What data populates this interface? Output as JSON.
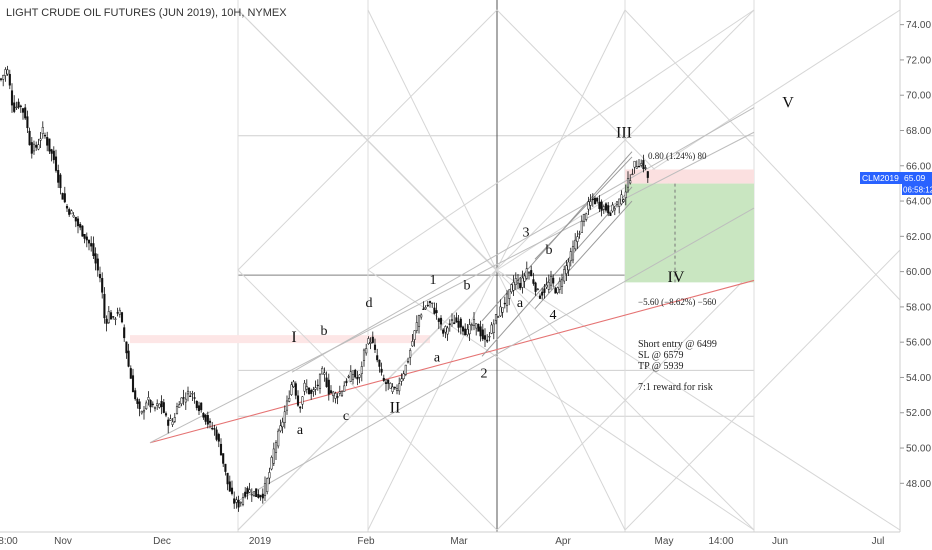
{
  "header": {
    "title": "LIGHT CRUDE OIL FUTURES (JUN 2019), 10H, NYMEX"
  },
  "price_badge": {
    "symbol": "CLM2019",
    "price": "65.09",
    "countdown": "06:58:12"
  },
  "notes": {
    "entry": "Short entry @ 6499",
    "sl": "SL @ 6579",
    "tp": "TP @ 5939",
    "ratio": "7:1 reward for risk",
    "risk_label": "0.80 (1.24%) 80",
    "reward_label": "−5.60 (−8.62%) −560"
  },
  "colors": {
    "candle": "#111111",
    "support_line": "#e57373",
    "channel": "#9a9a9a",
    "fan": "#d6d6d6",
    "target_zone": "#c9e6c1",
    "risk_zone": "#fbe0e0",
    "badge": "#2962ff",
    "vline": "#555555"
  },
  "chart_data": {
    "type": "candlestick",
    "title": "LIGHT CRUDE OIL FUTURES (JUN 2019), 10H, NYMEX",
    "ylim": [
      46.6,
      75.0
    ],
    "y_ticks": [
      "74.00",
      "72.00",
      "70.00",
      "68.00",
      "66.00",
      "64.00",
      "62.00",
      "60.00",
      "58.00",
      "56.00",
      "54.00",
      "52.00",
      "50.00",
      "48.00"
    ],
    "x_ticks": [
      "8:00",
      "Nov",
      "Dec",
      "2019",
      "Feb",
      "Mar",
      "Apr",
      "May",
      "14:00",
      "Jun",
      "Jul"
    ],
    "series": [
      {
        "values": [
          [
            0,
            70.9
          ],
          [
            6,
            71.6
          ],
          [
            12,
            69.2
          ],
          [
            18,
            69.5
          ],
          [
            24,
            68.9
          ],
          [
            30,
            66.9
          ],
          [
            36,
            67.1
          ],
          [
            42,
            68.0
          ],
          [
            48,
            67.0
          ],
          [
            54,
            66.2
          ],
          [
            60,
            64.5
          ],
          [
            66,
            63.6
          ],
          [
            72,
            63.2
          ],
          [
            78,
            62.5
          ],
          [
            84,
            62.0
          ],
          [
            90,
            61.4
          ],
          [
            96,
            60.2
          ],
          [
            100,
            59.5
          ],
          [
            104,
            57.0
          ],
          [
            108,
            57.7
          ],
          [
            112,
            57.2
          ],
          [
            118,
            57.9
          ],
          [
            124,
            56.0
          ],
          [
            128,
            54.5
          ],
          [
            134,
            52.8
          ],
          [
            140,
            51.8
          ],
          [
            146,
            52.8
          ],
          [
            152,
            52.2
          ],
          [
            160,
            52.5
          ],
          [
            166,
            51.5
          ],
          [
            172,
            51.5
          ],
          [
            178,
            52.7
          ],
          [
            184,
            52.9
          ],
          [
            190,
            53.2
          ],
          [
            196,
            52.5
          ],
          [
            202,
            52.0
          ],
          [
            208,
            51.3
          ],
          [
            214,
            51.0
          ],
          [
            220,
            49.8
          ],
          [
            226,
            48.1
          ],
          [
            232,
            47.0
          ],
          [
            238,
            46.8
          ],
          [
            244,
            47.5
          ],
          [
            250,
            47.6
          ],
          [
            256,
            47.3
          ],
          [
            262,
            47.4
          ],
          [
            268,
            48.5
          ],
          [
            274,
            50.2
          ],
          [
            280,
            51.2
          ],
          [
            286,
            52.5
          ],
          [
            292,
            54.0
          ],
          [
            298,
            52.2
          ],
          [
            304,
            53.6
          ],
          [
            310,
            53.0
          ],
          [
            316,
            53.5
          ],
          [
            322,
            54.4
          ],
          [
            328,
            53.2
          ],
          [
            334,
            53.0
          ],
          [
            340,
            53.2
          ],
          [
            346,
            53.9
          ],
          [
            352,
            54.2
          ],
          [
            358,
            53.8
          ],
          [
            364,
            55.8
          ],
          [
            370,
            56.2
          ],
          [
            376,
            55.0
          ],
          [
            382,
            53.8
          ],
          [
            388,
            53.5
          ],
          [
            394,
            53.2
          ],
          [
            400,
            54.0
          ],
          [
            406,
            54.8
          ],
          [
            412,
            56.2
          ],
          [
            418,
            57.5
          ],
          [
            424,
            58.0
          ],
          [
            430,
            58.2
          ],
          [
            436,
            57.5
          ],
          [
            442,
            56.5
          ],
          [
            448,
            57.0
          ],
          [
            454,
            57.2
          ],
          [
            460,
            57.0
          ],
          [
            466,
            56.5
          ],
          [
            472,
            57.1
          ],
          [
            478,
            56.7
          ],
          [
            484,
            56.0
          ],
          [
            490,
            56.7
          ],
          [
            496,
            57.5
          ],
          [
            502,
            58.1
          ],
          [
            508,
            58.7
          ],
          [
            514,
            59.6
          ],
          [
            520,
            59.2
          ],
          [
            526,
            60.2
          ],
          [
            532,
            59.5
          ],
          [
            538,
            58.6
          ],
          [
            544,
            59.0
          ],
          [
            550,
            59.5
          ],
          [
            556,
            58.8
          ],
          [
            562,
            59.9
          ],
          [
            568,
            60.6
          ],
          [
            574,
            61.6
          ],
          [
            580,
            62.6
          ],
          [
            586,
            63.6
          ],
          [
            592,
            64.1
          ],
          [
            598,
            63.8
          ],
          [
            604,
            63.6
          ],
          [
            610,
            63.4
          ],
          [
            616,
            63.9
          ],
          [
            622,
            64.2
          ],
          [
            628,
            65.2
          ],
          [
            633,
            66.0
          ],
          [
            638,
            66.2
          ],
          [
            644,
            65.9
          ],
          [
            648,
            65.09
          ]
        ]
      }
    ],
    "risk_reward": {
      "entry": 64.99,
      "stop_loss": 65.79,
      "take_profit": 59.39
    },
    "wave_labels": [
      {
        "text": "I",
        "x": 294,
        "y": 56.0
      },
      {
        "text": "b",
        "x": 324,
        "y": 56.4
      },
      {
        "text": "d",
        "x": 369,
        "y": 58.0
      },
      {
        "text": "a",
        "x": 300,
        "y": 50.8
      },
      {
        "text": "c",
        "x": 346,
        "y": 51.6
      },
      {
        "text": "II",
        "x": 395,
        "y": 52.0
      },
      {
        "text": "1",
        "x": 433,
        "y": 59.3
      },
      {
        "text": "b",
        "x": 467,
        "y": 59.0
      },
      {
        "text": "a",
        "x": 437,
        "y": 54.9
      },
      {
        "text": "2",
        "x": 484,
        "y": 54.0
      },
      {
        "text": "3",
        "x": 526,
        "y": 62.0
      },
      {
        "text": "b",
        "x": 549,
        "y": 61.0
      },
      {
        "text": "a",
        "x": 520,
        "y": 58.0
      },
      {
        "text": "4",
        "x": 553,
        "y": 57.3
      },
      {
        "text": "III",
        "x": 624,
        "y": 67.6
      },
      {
        "text": "IV",
        "x": 676,
        "y": 59.4
      },
      {
        "text": "V",
        "x": 788,
        "y": 69.3
      }
    ]
  }
}
